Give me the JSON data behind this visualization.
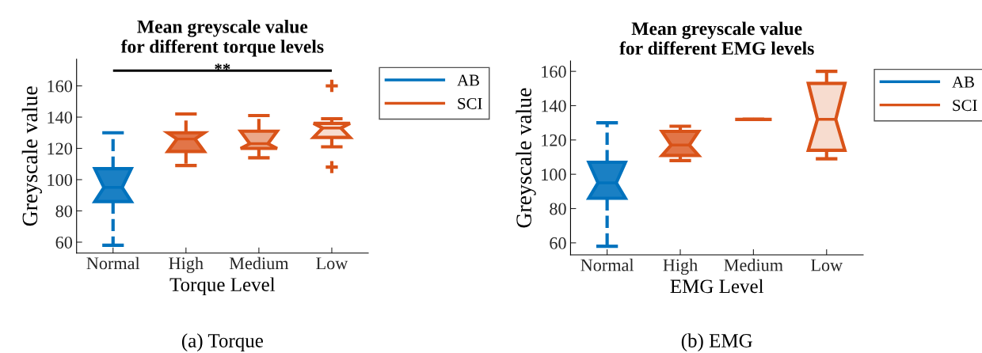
{
  "chart_data": [
    {
      "type": "box",
      "title": "Mean greyscale value\nfor different torque levels",
      "xlabel": "Torque Level",
      "ylabel": "Greyscale value",
      "categories": [
        "Normal",
        "High",
        "Medium",
        "Low"
      ],
      "ylim": [
        53,
        177
      ],
      "yticks": [
        60,
        80,
        100,
        120,
        140,
        160
      ],
      "legend": "top right",
      "grid": false,
      "marker": "cross",
      "line_style": "dashed",
      "series": [
        {
          "name": "AB",
          "color": "#0072bd",
          "colors": [
            "#1a80c4",
            null,
            null,
            null
          ],
          "boxes": [
            {
              "low": 58,
              "q1": 86,
              "median": 95,
              "q3": 107,
              "high": 130
            },
            null,
            null,
            null
          ]
        },
        {
          "name": "SCI",
          "color": "#d95319",
          "colors": [
            null,
            "#e27548",
            "#eba88a",
            "#f7dccf"
          ],
          "boxes": [
            null,
            {
              "low": 109,
              "q1": 118,
              "median": 126,
              "q3": 130,
              "high": 142
            },
            {
              "low": 114,
              "q1": 120,
              "median": 123,
              "q3": 131,
              "high": 141
            },
            {
              "low": 121,
              "q1": 127,
              "median": 133,
              "q3": 136,
              "high": 139,
              "outliers": [
                160,
                108
              ]
            }
          ]
        }
      ],
      "annotations": [
        "**",
        "(a) Torque"
      ]
    },
    {
      "type": "box",
      "title": "Mean greyscale value\nfor different EMG levels",
      "xlabel": "EMG Level",
      "ylabel": "Greyscale value",
      "categories": [
        "Normal",
        "High",
        "Medium",
        "Low"
      ],
      "ylim": [
        53,
        166
      ],
      "yticks": [
        60,
        80,
        100,
        120,
        140,
        160
      ],
      "legend": "top right",
      "grid": false,
      "marker": "cross",
      "line_style": "dashed",
      "series": [
        {
          "name": "AB",
          "color": "#0072bd",
          "colors": [
            "#1a80c4",
            null,
            null,
            null
          ],
          "boxes": [
            {
              "low": 58,
              "q1": 86,
              "median": 95,
              "q3": 107,
              "high": 130
            },
            null,
            null,
            null
          ]
        },
        {
          "name": "SCI",
          "color": "#d95319",
          "colors": [
            null,
            "#e27548",
            null,
            "#f7dccf"
          ],
          "boxes": [
            null,
            {
              "low": 108,
              "q1": 111,
              "median": 117,
              "q3": 125,
              "high": 128
            },
            {
              "low": 132,
              "q1": 132,
              "median": 132,
              "q3": 132,
              "high": 132
            },
            {
              "low": 109,
              "q1": 114,
              "median": 132,
              "q3": 153,
              "high": 160
            }
          ]
        }
      ],
      "annotations": [
        "(b) EMG"
      ]
    }
  ]
}
